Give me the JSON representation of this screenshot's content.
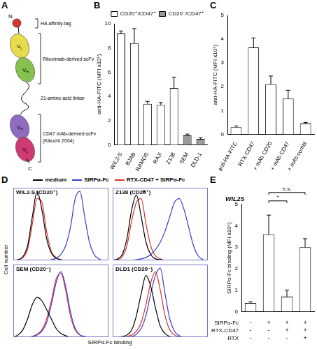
{
  "diagram": {
    "panel": "A",
    "n_terminus": "N",
    "c_terminus": "C",
    "labels": [
      "HA affinity-tag",
      "Rituximab-derived scFv",
      "21-amino acid linker",
      "CD47 mAb-derived scFv",
      "(Kikuchi 2004)"
    ],
    "tag_color": "#d9372b",
    "domains": [
      {
        "text": "V",
        "sub": "L",
        "color": "#e9dc4c"
      },
      {
        "text": "V",
        "sub": "H",
        "color": "#86c24e"
      },
      {
        "text": "V",
        "sub": "H",
        "color": "#8e6cc0"
      },
      {
        "text": "V",
        "sub": "L",
        "color": "#cf3a74"
      }
    ]
  },
  "chart_data": [
    {
      "panel": "B",
      "type": "bar",
      "y_label": "anti-HA-FITC (MFI x10⁵)",
      "categories": [
        "WIL2-S",
        "BJAB",
        "RAMOS",
        "RAJI",
        "Z138",
        "SEM",
        "DLD-1"
      ],
      "series": [
        {
          "name": "CD20⁺/CD47⁺",
          "color": "#ffffff",
          "values": [
            9.2,
            8.4,
            3.4,
            3.3,
            4.7,
            null,
            null
          ],
          "errors": [
            0.2,
            1.2,
            0.2,
            0.2,
            0.9,
            null,
            null
          ]
        },
        {
          "name": "CD20⁻/CD47⁺",
          "color": "#9a9a9a",
          "values": [
            null,
            null,
            null,
            null,
            null,
            0.8,
            0.5
          ],
          "errors": [
            null,
            null,
            null,
            null,
            null,
            0.1,
            0.1
          ]
        }
      ],
      "ylim": [
        0,
        10
      ],
      "yticks": [
        0,
        2,
        4,
        6,
        8,
        10
      ],
      "legend": "top-right",
      "grid": false
    },
    {
      "panel": "C",
      "type": "bar",
      "y_label": "anti-HA-FITC (MFI x10⁵)",
      "categories": [
        "anti-HA-FITC",
        "RTX-CD47",
        "+ mAb CD20",
        "+ mAb CD47",
        "+ mAb combi"
      ],
      "values": [
        0.3,
        3.65,
        2.1,
        1.5,
        0.45
      ],
      "errors": [
        0.05,
        0.4,
        0.35,
        0.35,
        0.05
      ],
      "color": "#ffffff",
      "ylim": [
        0,
        5
      ],
      "yticks": [
        0,
        1,
        2,
        3,
        4,
        5
      ],
      "grid": false
    },
    {
      "panel": "D",
      "type": "line",
      "legend": "top",
      "y_label": "Cell number",
      "x_label": "SIRPα-Fc binding",
      "xlim": [
        0,
        100
      ],
      "ylim": [
        0,
        100
      ],
      "tick_labels": false,
      "grid": false,
      "x": [
        0,
        5,
        10,
        15,
        20,
        25,
        30,
        35,
        40,
        45,
        50,
        55,
        60,
        65,
        70,
        75,
        80,
        85,
        90,
        95,
        100
      ],
      "subplots": [
        {
          "title": "WIL2-S (CD20⁺)",
          "series": [
            {
              "name": "medium",
              "color": "#000000",
              "values": [
                0,
                1,
                5,
                20,
                60,
                95,
                70,
                30,
                10,
                3,
                1,
                0,
                0,
                0,
                0,
                0,
                0,
                0,
                0,
                0,
                0
              ]
            },
            {
              "name": "SIRPα-Fc",
              "color": "#3b3bd1",
              "values": [
                0,
                0,
                0,
                0,
                0,
                0,
                0,
                0,
                1,
                3,
                8,
                20,
                45,
                85,
                95,
                60,
                25,
                8,
                2,
                0,
                0
              ]
            },
            {
              "name": "RTX-CD47 + SIRPα-Fc",
              "color": "#e0302a",
              "values": [
                0,
                1,
                4,
                15,
                50,
                85,
                80,
                40,
                12,
                4,
                1,
                0,
                0,
                0,
                0,
                0,
                0,
                0,
                0,
                0,
                0
              ]
            }
          ]
        },
        {
          "title": "Z138 (CD20⁺)",
          "annotations": [
            {
              "text": "*",
              "x": 33,
              "y": 92
            }
          ],
          "series": [
            {
              "name": "medium",
              "color": "#000000",
              "values": [
                0,
                2,
                8,
                30,
                70,
                90,
                60,
                25,
                8,
                2,
                1,
                0,
                0,
                0,
                0,
                0,
                0,
                0,
                0,
                0,
                0
              ]
            },
            {
              "name": "SIRPα-Fc",
              "color": "#3b3bd1",
              "values": [
                0,
                0,
                0,
                0,
                0,
                1,
                2,
                4,
                8,
                15,
                25,
                40,
                60,
                80,
                85,
                70,
                45,
                20,
                6,
                1,
                0
              ]
            },
            {
              "name": "RTX-CD47 + SIRPα-Fc",
              "color": "#e0302a",
              "values": [
                0,
                1,
                5,
                20,
                55,
                80,
                85,
                50,
                20,
                6,
                2,
                0,
                0,
                0,
                0,
                0,
                0,
                0,
                0,
                0,
                0
              ]
            }
          ]
        },
        {
          "title": "SEM (CD20⁻)",
          "series": [
            {
              "name": "medium",
              "color": "#000000",
              "values": [
                0,
                3,
                10,
                25,
                45,
                55,
                50,
                38,
                25,
                12,
                5,
                2,
                0,
                0,
                0,
                0,
                0,
                0,
                0,
                0,
                0
              ]
            },
            {
              "name": "SIRPα-Fc",
              "color": "#3b3bd1",
              "values": [
                0,
                0,
                0,
                0,
                1,
                3,
                8,
                20,
                45,
                75,
                90,
                70,
                35,
                12,
                3,
                1,
                0,
                0,
                0,
                0,
                0
              ]
            },
            {
              "name": "RTX-CD47 + SIRPα-Fc",
              "color": "#e0302a",
              "values": [
                0,
                0,
                0,
                0,
                1,
                4,
                10,
                25,
                50,
                80,
                88,
                65,
                30,
                10,
                3,
                1,
                0,
                0,
                0,
                0,
                0
              ]
            }
          ]
        },
        {
          "title": "DLD1 (CD20⁻)",
          "series": [
            {
              "name": "medium",
              "color": "#000000",
              "values": [
                0,
                0,
                1,
                3,
                10,
                30,
                60,
                85,
                70,
                40,
                15,
                5,
                1,
                0,
                0,
                0,
                0,
                0,
                0,
                0,
                0
              ]
            },
            {
              "name": "SIRPα-Fc",
              "color": "#3b3bd1",
              "values": [
                0,
                0,
                0,
                0,
                1,
                4,
                12,
                30,
                60,
                85,
                95,
                60,
                25,
                8,
                2,
                0,
                0,
                0,
                0,
                0,
                0
              ]
            },
            {
              "name": "RTX-CD47 + SIRPα-Fc",
              "color": "#e0302a",
              "values": [
                0,
                0,
                0,
                1,
                3,
                8,
                20,
                45,
                75,
                90,
                65,
                30,
                10,
                3,
                1,
                0,
                0,
                0,
                0,
                0,
                0
              ]
            }
          ]
        }
      ]
    },
    {
      "panel": "E",
      "type": "bar",
      "title": "WIL2S",
      "y_label": "SIRPα-Fc binding (MFI x10⁵)",
      "categories": [
        null,
        null,
        null,
        null
      ],
      "values": [
        0.4,
        3.6,
        0.7,
        3.0
      ],
      "errors": [
        0.05,
        0.9,
        0.3,
        0.4
      ],
      "color": "#ffffff",
      "ylim": [
        0,
        5
      ],
      "yticks": [
        0,
        1,
        2,
        3,
        4,
        5
      ],
      "grid": false,
      "conditions": [
        {
          "name": "SIRPα-Fc",
          "marks": [
            "-",
            "+",
            "+",
            "+"
          ]
        },
        {
          "name": "RTX-CD47",
          "marks": [
            "-",
            "-",
            "+",
            "+"
          ]
        },
        {
          "name": "RTX",
          "marks": [
            "-",
            "-",
            "-",
            "+"
          ]
        }
      ],
      "annotations": [
        {
          "text": "*",
          "from": 1,
          "to": 2
        },
        {
          "text": "n.s.",
          "from": 1,
          "to": 3
        }
      ]
    }
  ]
}
